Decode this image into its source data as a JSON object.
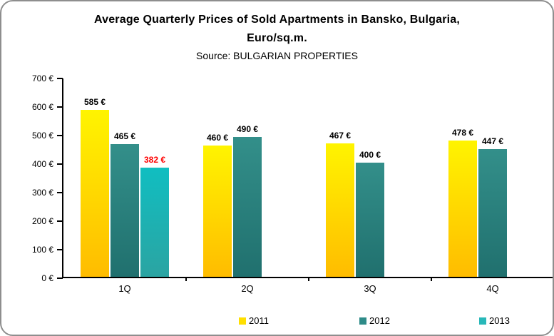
{
  "chart_data": {
    "type": "bar",
    "title": "Average Quarterly Prices of Sold Apartments in Bansko, Bulgaria, Euro/sq.m.",
    "title_lines": [
      "Average Quarterly Prices of Sold Apartments in Bansko, Bulgaria,",
      "Euro/sq.m."
    ],
    "source": "Source: BULGARIAN PROPERTIES",
    "categories": [
      "1Q",
      "2Q",
      "3Q",
      "4Q"
    ],
    "series": [
      {
        "name": "2011",
        "values": [
          585,
          460,
          467,
          478
        ],
        "color_top": "#fff400",
        "color_bottom": "#ffbc00",
        "legend_color": "#ffdf00",
        "label_color": "#000000"
      },
      {
        "name": "2012",
        "values": [
          465,
          490,
          400,
          447
        ],
        "color_top": "#338f8a",
        "color_bottom": "#20706e",
        "legend_color": "#2e8b88",
        "label_color": "#000000"
      },
      {
        "name": "2013",
        "values": [
          382,
          null,
          null,
          null
        ],
        "color_top": "#10bec1",
        "color_bottom": "#2ba4a2",
        "legend_color": "#28b8b9",
        "label_color": "#ff0000"
      }
    ],
    "ylim": [
      0,
      700
    ],
    "ytick_step": 100,
    "value_suffix": " €",
    "grid": false,
    "legend_position": "bottom",
    "axis_color": "#000000",
    "highlight_label": {
      "series": "2013",
      "category": "1Q",
      "color": "#ff0000"
    }
  }
}
